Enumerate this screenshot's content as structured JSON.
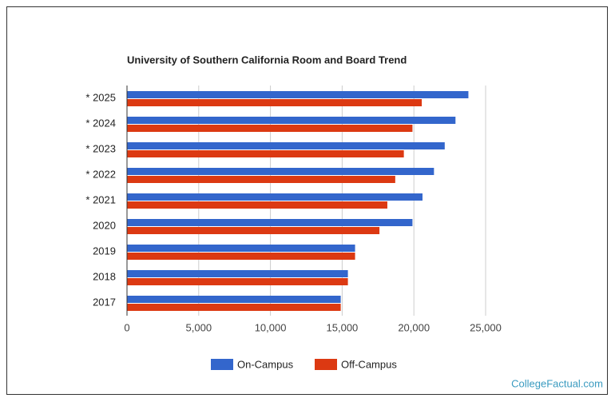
{
  "chart_data": {
    "type": "hbar",
    "title": "University of Southern California Room and Board Trend",
    "categories": [
      "* 2025",
      "* 2024",
      "* 2023",
      "* 2022",
      "* 2021",
      "2020",
      "2019",
      "2018",
      "2017"
    ],
    "series": [
      {
        "name": "On-Campus",
        "color": "#3366cc",
        "values": [
          23800,
          22900,
          22150,
          21400,
          20600,
          19900,
          15900,
          15400,
          14900
        ]
      },
      {
        "name": "Off-Campus",
        "color": "#dc3912",
        "values": [
          20550,
          19900,
          19300,
          18700,
          18150,
          17600,
          15900,
          15400,
          14900
        ]
      }
    ],
    "xlim": [
      0,
      25000
    ],
    "xticks": [
      0,
      {
        "value": 5000,
        "label": "5,000"
      },
      {
        "value": 10000,
        "label": "10,000"
      },
      {
        "value": 15000,
        "label": "15,000"
      },
      {
        "value": 20000,
        "label": "20,000"
      },
      {
        "value": 25000,
        "label": "25,000"
      }
    ],
    "grid": true,
    "legend": "bottom",
    "credit": "CollegeFactual.com"
  }
}
